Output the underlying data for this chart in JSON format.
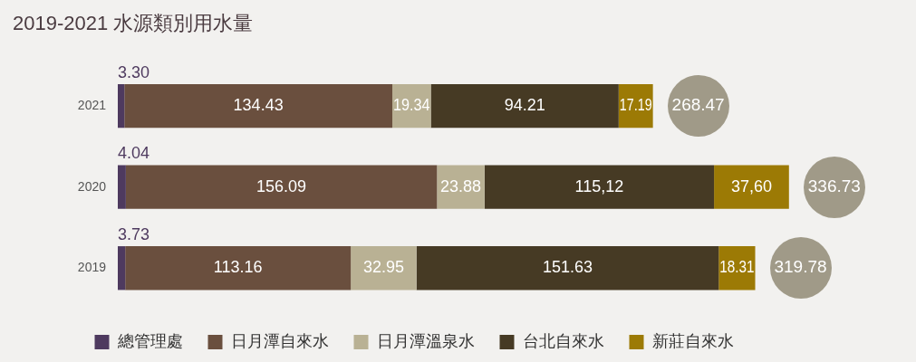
{
  "chart_data": {
    "type": "bar",
    "orientation": "horizontal",
    "stacked": true,
    "title": "2019-2021 水源類別用水量",
    "categories": [
      "2021",
      "2020",
      "2019"
    ],
    "series": [
      {
        "name": "總管理處",
        "color": "#4e3a5f",
        "values": [
          3.3,
          4.04,
          3.73
        ],
        "value_labels": [
          "3.30",
          "4.04",
          "3.73"
        ]
      },
      {
        "name": "日月潭自來水",
        "color": "#6a4f3e",
        "values": [
          134.43,
          156.09,
          113.16
        ],
        "value_labels": [
          "134.43",
          "156.09",
          "113.16"
        ]
      },
      {
        "name": "日月潭溫泉水",
        "color": "#b9b194",
        "values": [
          19.34,
          23.88,
          32.95
        ],
        "value_labels": [
          "19.34",
          "23.88",
          "32.95"
        ]
      },
      {
        "name": "台北自來水",
        "color": "#463a24",
        "values": [
          94.21,
          115.12,
          151.63
        ],
        "value_labels": [
          "94.21",
          "115,12",
          "151.63"
        ]
      },
      {
        "name": "新莊自來水",
        "color": "#9c7a05",
        "values": [
          17.19,
          37.6,
          18.31
        ],
        "value_labels": [
          "17.19",
          "37,60",
          "18.31"
        ]
      }
    ],
    "totals": [
      "268.47",
      "336.73",
      "319.78"
    ],
    "legend": "bottom"
  }
}
